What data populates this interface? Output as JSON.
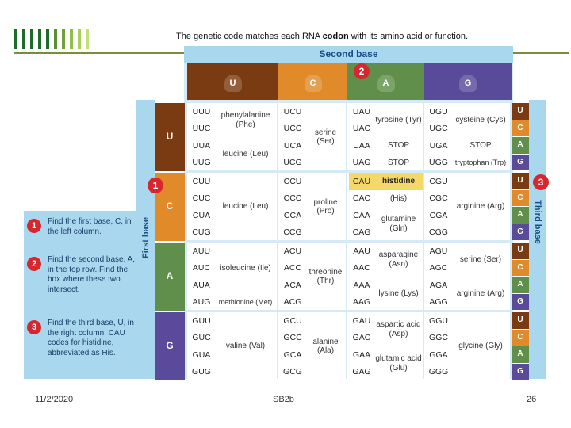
{
  "slide": {
    "title_pre": "The genetic code matches each RNA ",
    "title_bold": "codon",
    "title_post": " with its amino acid or function.",
    "footer_date": "11/2/2020",
    "footer_center": "SB2b",
    "footer_page": "26"
  },
  "table": {
    "second_base": "Second base",
    "first_base": "First base",
    "third_base": "Third base",
    "bases": [
      "U",
      "C",
      "A",
      "G"
    ],
    "badges": {
      "one": "1",
      "two": "2",
      "three": "3"
    },
    "blocks": [
      {
        "first": "U",
        "cols": [
          {
            "codons": [
              "UUU",
              "UUC",
              "UUA",
              "UUG"
            ],
            "aa": [
              {
                "t": "phenylalanine (Phe)",
                "span": 2
              },
              {
                "t": "leucine (Leu)",
                "span": 2
              }
            ]
          },
          {
            "codons": [
              "UCU",
              "UCC",
              "UCA",
              "UCG"
            ],
            "aa": [
              {
                "t": "serine (Ser)",
                "span": 4
              }
            ]
          },
          {
            "codons": [
              "UAU",
              "UAC",
              "UAA",
              "UAG"
            ],
            "aa": [
              {
                "t": "tyrosine (Tyr)",
                "span": 2
              },
              {
                "t": "STOP",
                "span": 1
              },
              {
                "t": "STOP",
                "span": 1
              }
            ]
          },
          {
            "codons": [
              "UGU",
              "UGC",
              "UGA",
              "UGG"
            ],
            "aa": [
              {
                "t": "cysteine (Cys)",
                "span": 2
              },
              {
                "t": "STOP",
                "span": 1
              },
              {
                "t": "tryptophan (Trp)",
                "span": 1
              }
            ]
          }
        ]
      },
      {
        "first": "C",
        "cols": [
          {
            "codons": [
              "CUU",
              "CUC",
              "CUA",
              "CUG"
            ],
            "aa": [
              {
                "t": "leucine (Leu)",
                "span": 4
              }
            ]
          },
          {
            "codons": [
              "CCU",
              "CCC",
              "CCA",
              "CCG"
            ],
            "aa": [
              {
                "t": "proline (Pro)",
                "span": 4
              }
            ]
          },
          {
            "codons": [
              "CAU",
              "CAC",
              "CAA",
              "CAG"
            ],
            "aa": [
              {
                "t": "histidine",
                "span": 1
              },
              {
                "t": "(His)",
                "span": 1
              },
              {
                "t": "glutamine (Gln)",
                "span": 2
              }
            ]
          },
          {
            "codons": [
              "CGU",
              "CGC",
              "CGA",
              "CGG"
            ],
            "aa": [
              {
                "t": "arginine (Arg)",
                "span": 4
              }
            ]
          }
        ]
      },
      {
        "first": "A",
        "cols": [
          {
            "codons": [
              "AUU",
              "AUC",
              "AUA",
              "AUG"
            ],
            "aa": [
              {
                "t": "isoleucine (Ile)",
                "span": 3
              },
              {
                "t": "methionine (Met)",
                "span": 1
              }
            ]
          },
          {
            "codons": [
              "ACU",
              "ACC",
              "ACA",
              "ACG"
            ],
            "aa": [
              {
                "t": "threonine (Thr)",
                "span": 4
              }
            ]
          },
          {
            "codons": [
              "AAU",
              "AAC",
              "AAA",
              "AAG"
            ],
            "aa": [
              {
                "t": "asparagine (Asn)",
                "span": 2
              },
              {
                "t": "lysine (Lys)",
                "span": 2
              }
            ]
          },
          {
            "codons": [
              "AGU",
              "AGC",
              "AGA",
              "AGG"
            ],
            "aa": [
              {
                "t": "serine (Ser)",
                "span": 2
              },
              {
                "t": "arginine (Arg)",
                "span": 2
              }
            ]
          }
        ]
      },
      {
        "first": "G",
        "cols": [
          {
            "codons": [
              "GUU",
              "GUC",
              "GUA",
              "GUG"
            ],
            "aa": [
              {
                "t": "valine (Val)",
                "span": 4
              }
            ]
          },
          {
            "codons": [
              "GCU",
              "GCC",
              "GCA",
              "GCG"
            ],
            "aa": [
              {
                "t": "alanine (Ala)",
                "span": 4
              }
            ]
          },
          {
            "codons": [
              "GAU",
              "GAC",
              "GAA",
              "GAG"
            ],
            "aa": [
              {
                "t": "aspartic acid (Asp)",
                "span": 2
              },
              {
                "t": "glutamic acid (Glu)",
                "span": 2
              }
            ]
          },
          {
            "codons": [
              "GGU",
              "GGC",
              "GGA",
              "GGG"
            ],
            "aa": [
              {
                "t": "glycine (Gly)",
                "span": 4
              }
            ]
          }
        ]
      }
    ],
    "colors": {
      "U": "#7a3b12",
      "C": "#e08a2a",
      "A": "#5f8f4a",
      "G": "#5a4a9a",
      "highlight": "#f5d86a"
    }
  },
  "steps": [
    {
      "num": "1",
      "text": "Find the first base, C, in the left column."
    },
    {
      "num": "2",
      "text": "Find the second base, A, in the top row. Find the box where these two intersect."
    },
    {
      "num": "3",
      "text": "Find the third base, U, in the right column. CAU codes for histidine, abbreviated as His."
    }
  ]
}
